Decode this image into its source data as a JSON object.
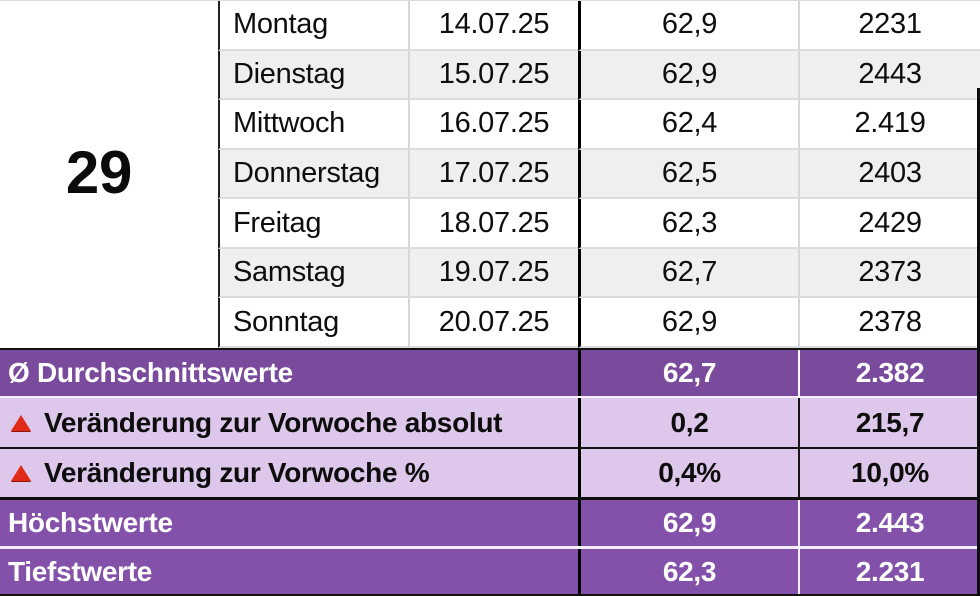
{
  "week": {
    "number": "29"
  },
  "days": [
    {
      "day": "Montag",
      "date": "14.07.25",
      "value1": "62,9",
      "value2": "2231"
    },
    {
      "day": "Dienstag",
      "date": "15.07.25",
      "value1": "62,9",
      "value2": "2443"
    },
    {
      "day": "Mittwoch",
      "date": "16.07.25",
      "value1": "62,4",
      "value2": "2.419"
    },
    {
      "day": "Donnerstag",
      "date": "17.07.25",
      "value1": "62,5",
      "value2": "2403"
    },
    {
      "day": "Freitag",
      "date": "18.07.25",
      "value1": "62,3",
      "value2": "2429"
    },
    {
      "day": "Samstag",
      "date": "19.07.25",
      "value1": "62,7",
      "value2": "2373"
    },
    {
      "day": "Sonntag",
      "date": "20.07.25",
      "value1": "62,9",
      "value2": "2378"
    }
  ],
  "summary": {
    "average": {
      "label": "Ø Durchschnittswerte",
      "value1": "62,7",
      "value2": "2.382",
      "icon": ""
    },
    "change_abs": {
      "label": "Veränderung zur Vorwoche absolut",
      "value1": "0,2",
      "value2": "215,7",
      "icon": "triangle-up"
    },
    "change_pct": {
      "label": "Veränderung zur Vorwoche %",
      "value1": "0,4%",
      "value2": "10,0%",
      "icon": "triangle-up"
    },
    "max": {
      "label": "Höchstwerte",
      "value1": "62,9",
      "value2": "2.443",
      "icon": ""
    },
    "min": {
      "label": "Tiefstwerte",
      "value1": "62,3",
      "value2": "2.231",
      "icon": ""
    }
  },
  "colors": {
    "header_purple": "#7a4a9d",
    "highlight_purple": "#8351a9",
    "light_purple": "#ddc7ea",
    "row_alt_gray": "#efefef",
    "triangle_red": "#df2b18"
  }
}
